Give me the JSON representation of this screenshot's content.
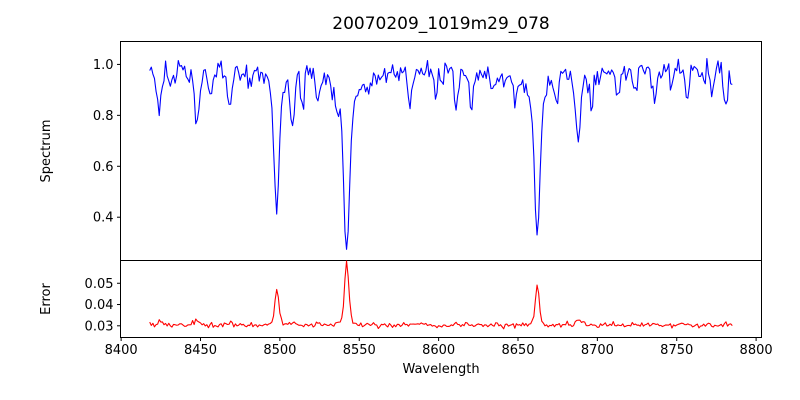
{
  "title": "20070209_1019m29_078",
  "axes": {
    "xlabel": "Wavelength",
    "xlim": [
      8399.6,
      8803.4
    ],
    "xticks": [
      8400,
      8450,
      8500,
      8550,
      8600,
      8650,
      8700,
      8750,
      8800
    ],
    "background": "#ffffff",
    "spine_color": "#000000",
    "text_color": "#000000",
    "grid": false,
    "legend": "none"
  },
  "chart_data": [
    {
      "type": "line",
      "name": "spectrum",
      "ylabel": "Spectrum",
      "color": "#0000ff",
      "ylim": [
        0.23,
        1.09
      ],
      "yticks": [
        0.4,
        0.6,
        0.8,
        1.0
      ],
      "ytick_decimals": 1,
      "x_start": 8418,
      "x_end": 8785,
      "x_step": 1.0,
      "base_level": 0.965,
      "trend_amplitude": 0.006,
      "trend_period": 140,
      "noise_sigma": 0.023,
      "noise_proportional": true,
      "seed": 20070209,
      "features_note": "absorption lines: c=center wavelength (A), a=depth (negative), w=gaussian sigma (A), wa/ww=damping-wing depth and sigma",
      "features": [
        {
          "c": 8424,
          "a": -0.16,
          "w": 1.3
        },
        {
          "c": 8431,
          "a": -0.07,
          "w": 1.0
        },
        {
          "c": 8448,
          "a": -0.22,
          "w": 1.4
        },
        {
          "c": 8456,
          "a": -0.09,
          "w": 1.0
        },
        {
          "c": 8468,
          "a": -0.14,
          "w": 1.3
        },
        {
          "c": 8480,
          "a": -0.06,
          "w": 1.0
        },
        {
          "c": 8498,
          "a": -0.45,
          "w": 1.5,
          "wa": -0.08,
          "ww": 5
        },
        {
          "c": 8508,
          "a": -0.2,
          "w": 1.3
        },
        {
          "c": 8514,
          "a": -0.12,
          "w": 1.1
        },
        {
          "c": 8524,
          "a": -0.13,
          "w": 1.2
        },
        {
          "c": 8536,
          "a": -0.06,
          "w": 1.0
        },
        {
          "c": 8542.1,
          "a": -0.57,
          "w": 1.8,
          "wa": -0.13,
          "ww": 7
        },
        {
          "c": 8556,
          "a": -0.06,
          "w": 1.0
        },
        {
          "c": 8582,
          "a": -0.13,
          "w": 1.2
        },
        {
          "c": 8598,
          "a": -0.08,
          "w": 1.1
        },
        {
          "c": 8611,
          "a": -0.14,
          "w": 1.2
        },
        {
          "c": 8621,
          "a": -0.11,
          "w": 1.1
        },
        {
          "c": 8634,
          "a": -0.07,
          "w": 1.0
        },
        {
          "c": 8648,
          "a": -0.12,
          "w": 1.1
        },
        {
          "c": 8662.1,
          "a": -0.53,
          "w": 1.7,
          "wa": -0.1,
          "ww": 6
        },
        {
          "c": 8674,
          "a": -0.09,
          "w": 1.1
        },
        {
          "c": 8688,
          "a": -0.28,
          "w": 1.5
        },
        {
          "c": 8696,
          "a": -0.12,
          "w": 1.1
        },
        {
          "c": 8713,
          "a": -0.09,
          "w": 1.1
        },
        {
          "c": 8724,
          "a": -0.07,
          "w": 1.0
        },
        {
          "c": 8736,
          "a": -0.11,
          "w": 1.2
        },
        {
          "c": 8747,
          "a": -0.07,
          "w": 1.0
        },
        {
          "c": 8757,
          "a": -0.1,
          "w": 1.1
        },
        {
          "c": 8772,
          "a": -0.08,
          "w": 1.0
        },
        {
          "c": 8781,
          "a": -0.13,
          "w": 1.2
        }
      ]
    },
    {
      "type": "line",
      "name": "error",
      "ylabel": "Error",
      "color": "#ff0000",
      "ylim": [
        0.0245,
        0.0607
      ],
      "yticks": [
        0.03,
        0.04,
        0.05
      ],
      "ytick_decimals": 2,
      "x_start": 8418,
      "x_end": 8785,
      "x_step": 1.0,
      "base_level": 0.0303,
      "trend_amplitude": 0,
      "trend_period": 1,
      "noise_sigma": 0.0006,
      "noise_proportional": false,
      "seed": 1019,
      "features_note": "error peaks at absorption-line cores: c=center (A), a=height, w=sigma (A)",
      "features": [
        {
          "c": 8424,
          "a": 0.0012,
          "w": 1.3
        },
        {
          "c": 8448,
          "a": 0.0018,
          "w": 1.4
        },
        {
          "c": 8468,
          "a": 0.001,
          "w": 1.3
        },
        {
          "c": 8498,
          "a": 0.017,
          "w": 1.2,
          "wa": 0.0012,
          "ww": 4
        },
        {
          "c": 8508,
          "a": 0.0012,
          "w": 1.2
        },
        {
          "c": 8524,
          "a": 0.0008,
          "w": 1.2
        },
        {
          "c": 8542.1,
          "a": 0.0275,
          "w": 1.3,
          "wa": 0.0022,
          "ww": 5
        },
        {
          "c": 8582,
          "a": 0.0008,
          "w": 1.2
        },
        {
          "c": 8611,
          "a": 0.0008,
          "w": 1.2
        },
        {
          "c": 8662.1,
          "a": 0.0175,
          "w": 1.2,
          "wa": 0.0012,
          "ww": 4
        },
        {
          "c": 8688,
          "a": 0.0032,
          "w": 1.5
        },
        {
          "c": 8736,
          "a": 0.0007,
          "w": 1.2
        },
        {
          "c": 8781,
          "a": 0.001,
          "w": 1.2
        }
      ]
    }
  ]
}
